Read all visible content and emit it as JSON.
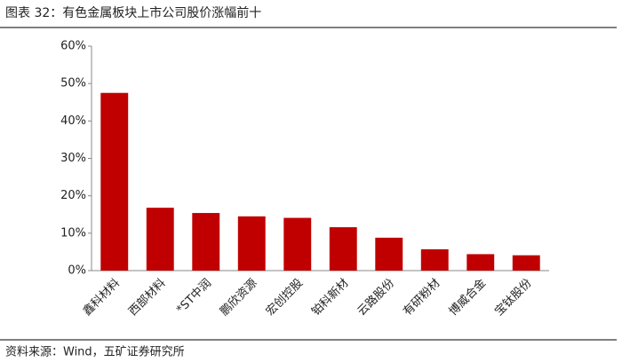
{
  "chart_data": {
    "type": "bar",
    "title": "图表 32：有色金属板块上市公司股价涨幅前十",
    "source": "资料来源：Wind，五矿证券研究所",
    "categories": [
      "鑫科材料",
      "西部材料",
      "*ST中润",
      "鹏欣资源",
      "宏创控股",
      "铂科新材",
      "云路股份",
      "有研粉材",
      "博威合金",
      "宝钛股份"
    ],
    "values": [
      47.5,
      16.8,
      15.4,
      14.5,
      14.1,
      11.6,
      8.8,
      5.7,
      4.4,
      4.1
    ],
    "color": "#c00000",
    "ylim": [
      0,
      60
    ],
    "yticks": [
      {
        "value": 0,
        "label": "0%"
      },
      {
        "value": 10,
        "label": "10%"
      },
      {
        "value": 20,
        "label": "20%"
      },
      {
        "value": 30,
        "label": "30%"
      },
      {
        "value": 40,
        "label": "40%"
      },
      {
        "value": 50,
        "label": "50%"
      },
      {
        "value": 60,
        "label": "60%"
      }
    ],
    "grid": false
  }
}
